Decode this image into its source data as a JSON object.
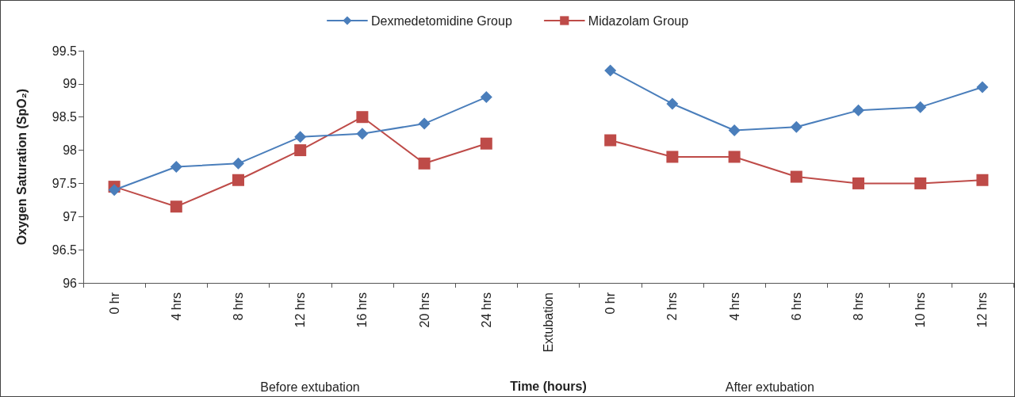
{
  "chart_data": {
    "type": "line",
    "ylabel": "Oxygen Saturation (SpO₂)",
    "xlabel": "Time (hours)",
    "categories": [
      "0 hr",
      "4 hrs",
      "8 hrs",
      "12 hrs",
      "16 hrs",
      "20 hrs",
      "24 hrs",
      "Extubation",
      "0 hr",
      "2 hrs",
      "4 hrs",
      "6 hrs",
      "8 hrs",
      "10 hrs",
      "12 hrs"
    ],
    "series": [
      {
        "name": "Dexmedetomidine Group",
        "color": "#4a7ebb",
        "marker": "diamond",
        "values": [
          97.4,
          97.75,
          97.8,
          98.2,
          98.25,
          98.4,
          98.8,
          null,
          99.2,
          98.7,
          98.3,
          98.35,
          98.6,
          98.65,
          98.95
        ]
      },
      {
        "name": "Midazolam Group",
        "color": "#be4b48",
        "marker": "square",
        "values": [
          97.45,
          97.15,
          97.55,
          98.0,
          98.5,
          97.8,
          98.1,
          null,
          98.15,
          97.9,
          97.9,
          97.6,
          97.5,
          97.5,
          97.55
        ]
      }
    ],
    "ylim": [
      96,
      99.5
    ],
    "yticks": [
      96,
      96.5,
      97,
      97.5,
      98,
      98.5,
      99,
      99.5
    ],
    "annotations": [
      "Before extubation",
      "After extubation"
    ],
    "grid": false,
    "legend": "top",
    "line_style": "solid"
  }
}
